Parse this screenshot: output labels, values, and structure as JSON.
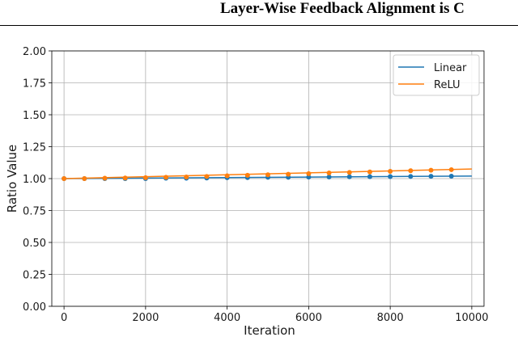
{
  "header": {
    "running_title": "Layer-Wise Feedback Alignment is C"
  },
  "chart_data": {
    "type": "line",
    "xlabel": "Iteration",
    "ylabel": "Ratio Value",
    "xlim": [
      -300,
      10300
    ],
    "ylim": [
      0,
      2
    ],
    "x_ticks": [
      "0",
      "2000",
      "4000",
      "6000",
      "8000",
      "10000"
    ],
    "y_ticks": [
      "0.00",
      "0.25",
      "0.50",
      "0.75",
      "1.00",
      "1.25",
      "1.50",
      "1.75",
      "2.00"
    ],
    "grid": true,
    "legend_position": "top-right",
    "series": [
      {
        "name": "Linear",
        "color": "#1f77b4",
        "line_x": [
          0,
          10000
        ],
        "line_y": [
          1.0,
          1.02
        ],
        "marker_x": [
          0,
          500,
          1000,
          1500,
          2000,
          2500,
          3000,
          3500,
          4000,
          4500,
          5000,
          5500,
          6000,
          6500,
          7000,
          7500,
          8000,
          8500,
          9000,
          9500
        ],
        "marker_y": [
          1.0,
          1.0,
          1.0,
          1.0,
          1.0,
          1.003,
          1.003,
          1.005,
          1.007,
          1.008,
          1.01,
          1.01,
          1.012,
          1.013,
          1.014,
          1.015,
          1.016,
          1.017,
          1.018,
          1.019
        ]
      },
      {
        "name": "ReLU",
        "color": "#ff7f0e",
        "line_x": [
          0,
          10000
        ],
        "line_y": [
          1.0,
          1.075
        ],
        "marker_x": [
          0,
          500,
          1000,
          1500,
          2000,
          2500,
          3000,
          3500,
          4000,
          4500,
          5000,
          5500,
          6000,
          6500,
          7000,
          7500,
          8000,
          8500,
          9000,
          9500
        ],
        "marker_y": [
          1.0,
          1.0,
          1.003,
          1.005,
          1.007,
          1.01,
          1.013,
          1.017,
          1.022,
          1.026,
          1.03,
          1.034,
          1.039,
          1.044,
          1.048,
          1.052,
          1.057,
          1.062,
          1.066,
          1.07
        ]
      }
    ]
  }
}
